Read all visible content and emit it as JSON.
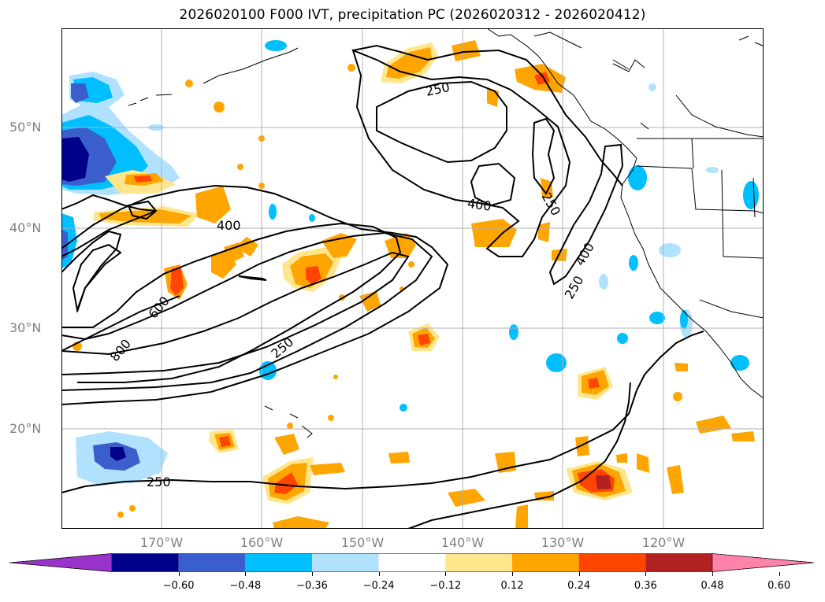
{
  "title": "2026020100 F000 IVT, precipitation PC (2026020312 - 2026020412)",
  "axes": {
    "lat_labels": [
      "50°N",
      "40°N",
      "30°N",
      "20°N"
    ],
    "lon_labels": [
      "170°W",
      "160°W",
      "150°W",
      "140°W",
      "130°W",
      "120°W"
    ]
  },
  "colorbar": {
    "ticks": [
      "−0.60",
      "−0.48",
      "−0.36",
      "−0.24",
      "−0.12",
      "0.12",
      "0.24",
      "0.36",
      "0.48",
      "0.60"
    ],
    "colors": [
      "#9933cc",
      "#00008b",
      "#3a5fcd",
      "#00bfff",
      "#b0e2ff",
      "#ffffff",
      "#ffe68c",
      "#ffa500",
      "#ff4500",
      "#b22222",
      "#ff82ab"
    ]
  },
  "contour_labels": [
    "250",
    "400",
    "400",
    "600",
    "800",
    "250",
    "250",
    "400",
    "250",
    "250"
  ],
  "palette": {
    "light_blue": "#b0e2ff",
    "blue": "#00bfff",
    "mid_blue": "#3a5fcd",
    "navy": "#00008b",
    "yellow": "#ffe68c",
    "orange": "#ffa500",
    "red_orange": "#ff4500",
    "dark_red": "#b22222"
  }
}
